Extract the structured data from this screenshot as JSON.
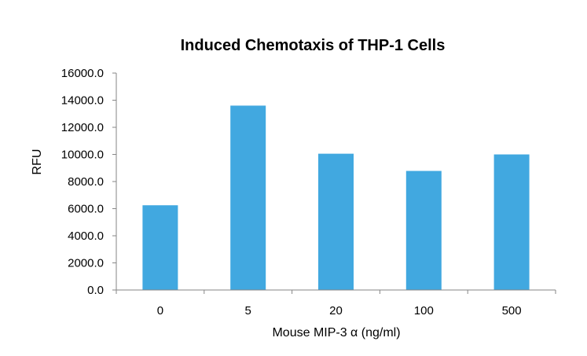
{
  "chart_data": {
    "type": "bar",
    "title": "Induced Chemotaxis of THP-1 Cells",
    "xlabel": "Mouse MIP-3 α (ng/ml)",
    "ylabel": "RFU",
    "categories": [
      "0",
      "5",
      "20",
      "100",
      "500"
    ],
    "values": [
      6250,
      13600,
      10050,
      8780,
      10000
    ],
    "ylim": [
      0,
      16000
    ],
    "yticks": [
      "0.0",
      "2000.0",
      "4000.0",
      "6000.0",
      "8000.0",
      "10000.0",
      "12000.0",
      "14000.0",
      "16000.0"
    ],
    "ytick_values": [
      0,
      2000,
      4000,
      6000,
      8000,
      10000,
      12000,
      14000,
      16000
    ],
    "bar_color": "#41a8e0",
    "grid": false,
    "legend": "none"
  }
}
